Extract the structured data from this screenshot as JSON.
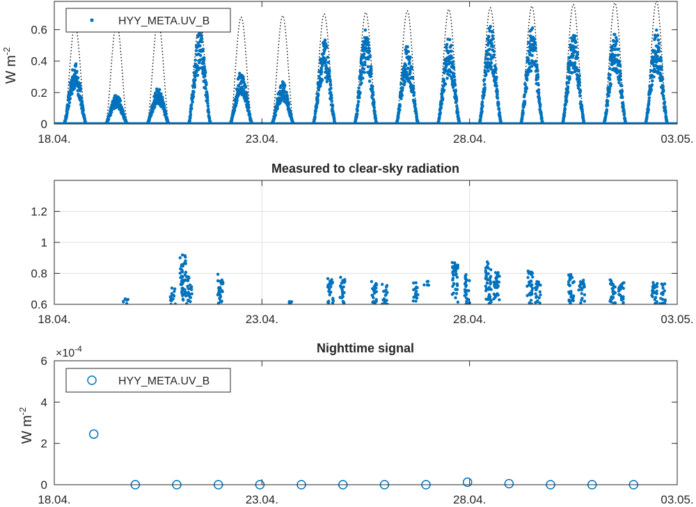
{
  "figure": {
    "accent_color": "#0072BD",
    "clear_sky_color": "#000000"
  },
  "chart_data": [
    {
      "type": "scatter",
      "title": "",
      "xlabel": "",
      "ylabel": "W m",
      "ylabel_exponent": "-2",
      "xlim": [
        0,
        15.0
      ],
      "ylim": [
        0,
        0.78
      ],
      "x_ticks": [
        0,
        5,
        10,
        15
      ],
      "x_tick_labels": [
        "18.04.",
        "23.04.",
        "28.04.",
        "03.05."
      ],
      "y_ticks": [
        0,
        0.2,
        0.4,
        0.6
      ],
      "y_tick_labels": [
        "0",
        "0.2",
        "0.4",
        "0.6"
      ],
      "grid": false,
      "legend": {
        "placement": "top-left",
        "entries": [
          "HYY_META.UV_B"
        ]
      },
      "series": [
        {
          "name": "HYY_META.UV_B",
          "marker": "dot",
          "daily_peaks": [
            {
              "day": 0,
              "peak": 0.39
            },
            {
              "day": 1,
              "peak": 0.19
            },
            {
              "day": 2,
              "peak": 0.23
            },
            {
              "day": 3,
              "peak": 0.6
            },
            {
              "day": 4,
              "peak": 0.34
            },
            {
              "day": 5,
              "peak": 0.27
            },
            {
              "day": 6,
              "peak": 0.54
            },
            {
              "day": 7,
              "peak": 0.6
            },
            {
              "day": 8,
              "peak": 0.5
            },
            {
              "day": 9,
              "peak": 0.55
            },
            {
              "day": 10,
              "peak": 0.63
            },
            {
              "day": 11,
              "peak": 0.62
            },
            {
              "day": 12,
              "peak": 0.6
            },
            {
              "day": 13,
              "peak": 0.6
            },
            {
              "day": 14,
              "peak": 0.6
            }
          ]
        },
        {
          "name": "",
          "line": "dotted",
          "daily_peaks": [
            {
              "day": 0,
              "peak": 0.63
            },
            {
              "day": 1,
              "peak": 0.64
            },
            {
              "day": 2,
              "peak": 0.66
            },
            {
              "day": 3,
              "peak": 0.67
            },
            {
              "day": 4,
              "peak": 0.68
            },
            {
              "day": 5,
              "peak": 0.69
            },
            {
              "day": 6,
              "peak": 0.7
            },
            {
              "day": 7,
              "peak": 0.71
            },
            {
              "day": 8,
              "peak": 0.72
            },
            {
              "day": 9,
              "peak": 0.73
            },
            {
              "day": 10,
              "peak": 0.74
            },
            {
              "day": 11,
              "peak": 0.75
            },
            {
              "day": 12,
              "peak": 0.76
            },
            {
              "day": 13,
              "peak": 0.77
            },
            {
              "day": 14,
              "peak": 0.78
            }
          ]
        }
      ]
    },
    {
      "type": "scatter",
      "title": "Measured to clear-sky radiation",
      "xlabel": "",
      "ylabel": "",
      "xlim": [
        0,
        15.0
      ],
      "ylim": [
        0.6,
        1.4
      ],
      "x_ticks": [
        0,
        5,
        10,
        15
      ],
      "x_tick_labels": [
        "18.04.",
        "23.04.",
        "28.04.",
        "03.05."
      ],
      "y_ticks": [
        0.6,
        0.8,
        1.0,
        1.2
      ],
      "y_tick_labels": [
        "0.6",
        "0.8",
        "1",
        "1.2"
      ],
      "grid": true,
      "series": [
        {
          "name": "",
          "clusters": [
            {
              "x": 1.73,
              "ymin": 0.6,
              "ymax": 0.64
            },
            {
              "x": 2.85,
              "ymin": 0.6,
              "ymax": 0.71
            },
            {
              "x": 3.1,
              "ymin": 0.6,
              "ymax": 0.92
            },
            {
              "x": 3.25,
              "ymin": 0.6,
              "ymax": 0.78
            },
            {
              "x": 4.0,
              "ymin": 0.6,
              "ymax": 0.8
            },
            {
              "x": 5.65,
              "ymin": 0.6,
              "ymax": 0.62
            },
            {
              "x": 6.65,
              "ymin": 0.6,
              "ymax": 0.77
            },
            {
              "x": 6.95,
              "ymin": 0.6,
              "ymax": 0.78
            },
            {
              "x": 7.7,
              "ymin": 0.6,
              "ymax": 0.75
            },
            {
              "x": 7.95,
              "ymin": 0.6,
              "ymax": 0.73
            },
            {
              "x": 8.7,
              "ymin": 0.62,
              "ymax": 0.74
            },
            {
              "x": 8.95,
              "ymin": 0.72,
              "ymax": 0.75
            },
            {
              "x": 9.65,
              "ymin": 0.6,
              "ymax": 0.88
            },
            {
              "x": 9.95,
              "ymin": 0.6,
              "ymax": 0.8
            },
            {
              "x": 10.45,
              "ymin": 0.6,
              "ymax": 0.88
            },
            {
              "x": 10.65,
              "ymin": 0.6,
              "ymax": 0.81
            },
            {
              "x": 11.45,
              "ymin": 0.6,
              "ymax": 0.82
            },
            {
              "x": 11.65,
              "ymin": 0.6,
              "ymax": 0.75
            },
            {
              "x": 12.45,
              "ymin": 0.6,
              "ymax": 0.8
            },
            {
              "x": 12.7,
              "ymin": 0.6,
              "ymax": 0.76
            },
            {
              "x": 13.45,
              "ymin": 0.6,
              "ymax": 0.77
            },
            {
              "x": 13.65,
              "ymin": 0.6,
              "ymax": 0.74
            },
            {
              "x": 14.45,
              "ymin": 0.6,
              "ymax": 0.75
            },
            {
              "x": 14.65,
              "ymin": 0.6,
              "ymax": 0.74
            }
          ]
        }
      ]
    },
    {
      "type": "scatter",
      "title": "Nighttime signal",
      "xlabel": "",
      "ylabel": "W m",
      "ylabel_exponent": "-2",
      "y_multiplier": "×10",
      "y_multiplier_exponent": "-4",
      "xlim": [
        0,
        15.0
      ],
      "ylim": [
        0,
        6
      ],
      "x_ticks": [
        0,
        5,
        10,
        15
      ],
      "x_tick_labels": [
        "18.04.",
        "23.04.",
        "28.04.",
        "03.05."
      ],
      "y_ticks": [
        0,
        2,
        4,
        6
      ],
      "y_tick_labels": [
        "0",
        "2",
        "4",
        "6"
      ],
      "grid": false,
      "legend": {
        "placement": "top-left",
        "entries": [
          "HYY_META.UV_B"
        ]
      },
      "series": [
        {
          "name": "HYY_META.UV_B",
          "marker": "circle",
          "x": [
            0.95,
            1.95,
            2.95,
            3.95,
            4.95,
            5.95,
            6.95,
            7.95,
            8.95,
            9.95,
            10.95,
            11.95,
            12.95,
            13.95
          ],
          "y": [
            2.45,
            0.0,
            0.0,
            0.0,
            0.0,
            0.0,
            0.0,
            0.0,
            0.0,
            0.12,
            0.05,
            0.0,
            0.0,
            0.0
          ]
        }
      ]
    }
  ]
}
